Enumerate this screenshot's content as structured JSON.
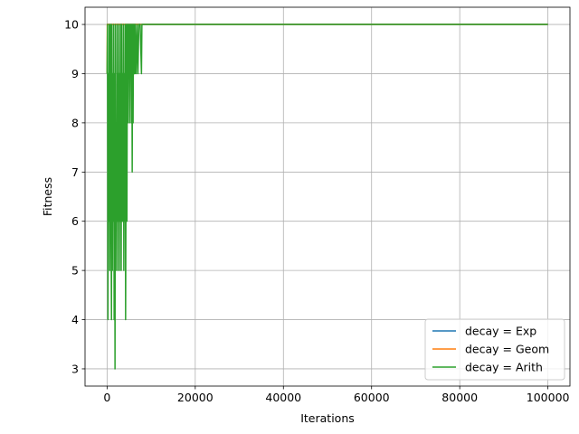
{
  "chart_data": {
    "type": "line",
    "title": "",
    "xlabel": "Iterations",
    "ylabel": "Fitness",
    "xlim": [
      -5000,
      105000
    ],
    "ylim": [
      2.65,
      10.35
    ],
    "xticks": [
      0,
      20000,
      40000,
      60000,
      80000,
      100000
    ],
    "yticks": [
      3,
      4,
      5,
      6,
      7,
      8,
      9,
      10
    ],
    "grid": true,
    "legend_position": "lower-right",
    "series": [
      {
        "name": "decay = Exp",
        "color": "#1f77b4",
        "points": [
          [
            0,
            10
          ],
          [
            100000,
            10
          ]
        ]
      },
      {
        "name": "decay = Geom",
        "color": "#ff7f0e",
        "points": [
          [
            0,
            9
          ],
          [
            50,
            10
          ],
          [
            100000,
            10
          ]
        ]
      },
      {
        "name": "decay = Arith",
        "color": "#2ca02c",
        "points": [
          [
            0,
            9
          ],
          [
            100,
            10
          ],
          [
            200,
            4
          ],
          [
            300,
            9
          ],
          [
            400,
            6
          ],
          [
            500,
            10
          ],
          [
            600,
            5
          ],
          [
            700,
            9
          ],
          [
            800,
            10
          ],
          [
            900,
            6
          ],
          [
            1000,
            4
          ],
          [
            1100,
            10
          ],
          [
            1200,
            5
          ],
          [
            1300,
            9
          ],
          [
            1400,
            6
          ],
          [
            1500,
            10
          ],
          [
            1600,
            4
          ],
          [
            1700,
            9
          ],
          [
            1800,
            3
          ],
          [
            1900,
            10
          ],
          [
            2000,
            5
          ],
          [
            2100,
            8
          ],
          [
            2200,
            6
          ],
          [
            2300,
            10
          ],
          [
            2400,
            5
          ],
          [
            2500,
            9
          ],
          [
            2600,
            6
          ],
          [
            2700,
            10
          ],
          [
            2800,
            5
          ],
          [
            2900,
            9
          ],
          [
            3000,
            6
          ],
          [
            3100,
            10
          ],
          [
            3200,
            5
          ],
          [
            3300,
            10
          ],
          [
            3400,
            6
          ],
          [
            3500,
            9
          ],
          [
            3600,
            6
          ],
          [
            3700,
            10
          ],
          [
            3800,
            5
          ],
          [
            3900,
            9
          ],
          [
            4000,
            6
          ],
          [
            4100,
            10
          ],
          [
            4200,
            4
          ],
          [
            4300,
            7
          ],
          [
            4400,
            10
          ],
          [
            4500,
            6
          ],
          [
            4600,
            10
          ],
          [
            4700,
            8
          ],
          [
            4800,
            10
          ],
          [
            4900,
            9
          ],
          [
            5000,
            10
          ],
          [
            5100,
            8
          ],
          [
            5200,
            10
          ],
          [
            5300,
            9
          ],
          [
            5400,
            10
          ],
          [
            5500,
            8
          ],
          [
            5600,
            10
          ],
          [
            5700,
            7
          ],
          [
            5800,
            10
          ],
          [
            5900,
            8
          ],
          [
            6000,
            10
          ],
          [
            6100,
            9
          ],
          [
            6200,
            10
          ],
          [
            6300,
            9
          ],
          [
            6400,
            10
          ],
          [
            6600,
            9
          ],
          [
            6800,
            10
          ],
          [
            7000,
            9
          ],
          [
            7200,
            10
          ],
          [
            7500,
            10
          ],
          [
            7800,
            9
          ],
          [
            7900,
            10
          ],
          [
            100000,
            10
          ]
        ]
      }
    ]
  }
}
